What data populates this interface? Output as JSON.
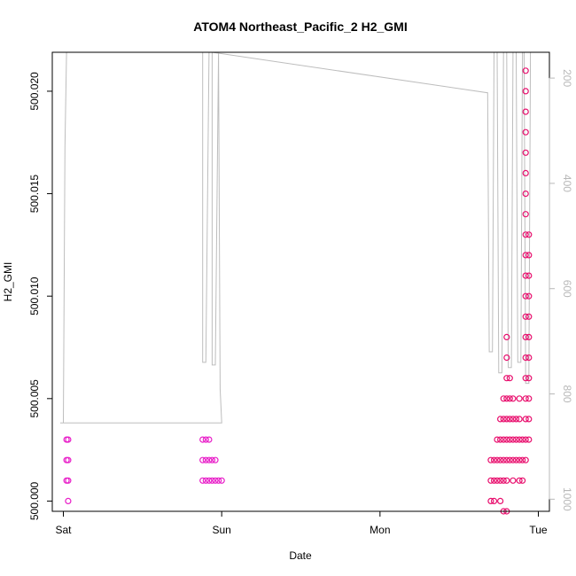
{
  "chart_data": {
    "type": "scatter",
    "title": "ATOM4 Northeast_Pacific_2 H2_GMI",
    "xlabel": "Date",
    "ylabel": "H2_GMI",
    "x_ticks": [
      "Sat",
      "Sun",
      "Mon",
      "Tue"
    ],
    "x_tick_values": [
      0,
      1,
      2,
      3
    ],
    "xlim": [
      -0.07,
      3.07
    ],
    "ylim": [
      499.9995,
      500.0219
    ],
    "y_ticks": [
      500.0,
      500.005,
      500.01,
      500.015,
      500.02
    ],
    "y_tick_labels": [
      "500.000",
      "500.005",
      "500.010",
      "500.015",
      "500.020"
    ],
    "y2_ticks": [
      200,
      400,
      600,
      800,
      1000
    ],
    "y2_tick_labels": [
      "200",
      "400",
      "600",
      "800",
      "1000"
    ],
    "y2lim": [
      1023,
      151
    ],
    "colors": {
      "early_points": "#e81ec8",
      "late_points": "#e8106e",
      "pressure_line": "#bdbdbd",
      "right_axis": "#b8b8b8"
    },
    "series": [
      {
        "role": "points",
        "color": "#e81ec8",
        "points": [
          [
            0.02,
            500.003
          ],
          [
            0.02,
            500.002
          ],
          [
            0.02,
            500.001
          ],
          [
            0.03,
            500.003
          ],
          [
            0.03,
            500.002
          ],
          [
            0.03,
            500.001
          ],
          [
            0.03,
            500.0
          ],
          [
            0.88,
            500.003
          ],
          [
            0.88,
            500.002
          ],
          [
            0.88,
            500.001
          ],
          [
            0.9,
            500.003
          ],
          [
            0.9,
            500.002
          ],
          [
            0.9,
            500.001
          ],
          [
            0.92,
            500.003
          ],
          [
            0.92,
            500.002
          ],
          [
            0.92,
            500.001
          ],
          [
            0.94,
            500.002
          ],
          [
            0.94,
            500.001
          ],
          [
            0.96,
            500.002
          ],
          [
            0.96,
            500.001
          ],
          [
            0.98,
            500.001
          ],
          [
            1.0,
            500.001
          ]
        ]
      },
      {
        "role": "points",
        "color": "#e8106e",
        "points": [
          [
            2.7,
            500.002
          ],
          [
            2.7,
            500.001
          ],
          [
            2.7,
            500.0
          ],
          [
            2.72,
            500.002
          ],
          [
            2.72,
            500.001
          ],
          [
            2.72,
            500.0
          ],
          [
            2.74,
            500.003
          ],
          [
            2.74,
            500.002
          ],
          [
            2.74,
            500.001
          ],
          [
            2.76,
            500.004
          ],
          [
            2.76,
            500.003
          ],
          [
            2.76,
            500.002
          ],
          [
            2.76,
            500.001
          ],
          [
            2.76,
            500.0
          ],
          [
            2.78,
            500.005
          ],
          [
            2.78,
            500.004
          ],
          [
            2.78,
            500.003
          ],
          [
            2.78,
            500.002
          ],
          [
            2.78,
            500.001
          ],
          [
            2.78,
            499.9995
          ],
          [
            2.8,
            500.008
          ],
          [
            2.8,
            500.007
          ],
          [
            2.8,
            500.006
          ],
          [
            2.8,
            500.005
          ],
          [
            2.8,
            500.004
          ],
          [
            2.8,
            500.003
          ],
          [
            2.8,
            500.002
          ],
          [
            2.8,
            500.001
          ],
          [
            2.8,
            499.9995
          ],
          [
            2.82,
            500.006
          ],
          [
            2.82,
            500.005
          ],
          [
            2.82,
            500.004
          ],
          [
            2.82,
            500.003
          ],
          [
            2.82,
            500.002
          ],
          [
            2.84,
            500.005
          ],
          [
            2.84,
            500.004
          ],
          [
            2.84,
            500.003
          ],
          [
            2.84,
            500.002
          ],
          [
            2.84,
            500.001
          ],
          [
            2.86,
            500.004
          ],
          [
            2.86,
            500.003
          ],
          [
            2.86,
            500.002
          ],
          [
            2.88,
            500.005
          ],
          [
            2.88,
            500.004
          ],
          [
            2.88,
            500.003
          ],
          [
            2.88,
            500.002
          ],
          [
            2.88,
            500.001
          ],
          [
            2.9,
            500.003
          ],
          [
            2.9,
            500.002
          ],
          [
            2.9,
            500.001
          ],
          [
            2.92,
            500.021
          ],
          [
            2.92,
            500.02
          ],
          [
            2.92,
            500.019
          ],
          [
            2.92,
            500.018
          ],
          [
            2.92,
            500.017
          ],
          [
            2.92,
            500.016
          ],
          [
            2.92,
            500.015
          ],
          [
            2.92,
            500.014
          ],
          [
            2.92,
            500.013
          ],
          [
            2.92,
            500.012
          ],
          [
            2.92,
            500.011
          ],
          [
            2.92,
            500.01
          ],
          [
            2.92,
            500.009
          ],
          [
            2.92,
            500.008
          ],
          [
            2.92,
            500.007
          ],
          [
            2.92,
            500.006
          ],
          [
            2.92,
            500.005
          ],
          [
            2.92,
            500.004
          ],
          [
            2.92,
            500.003
          ],
          [
            2.92,
            500.002
          ],
          [
            2.94,
            500.013
          ],
          [
            2.94,
            500.012
          ],
          [
            2.94,
            500.011
          ],
          [
            2.94,
            500.01
          ],
          [
            2.94,
            500.009
          ],
          [
            2.94,
            500.008
          ],
          [
            2.94,
            500.007
          ],
          [
            2.94,
            500.006
          ],
          [
            2.94,
            500.005
          ],
          [
            2.94,
            500.004
          ],
          [
            2.94,
            500.003
          ]
        ]
      },
      {
        "role": "line",
        "axis": "right",
        "color": "#bdbdbd",
        "points": [
          [
            -0.02,
            855
          ],
          [
            0.0,
            855
          ],
          [
            0.01,
            330
          ],
          [
            0.02,
            151
          ],
          [
            0.88,
            151
          ],
          [
            0.88,
            740
          ],
          [
            0.9,
            740
          ],
          [
            0.92,
            151
          ],
          [
            0.94,
            151
          ],
          [
            0.94,
            745
          ],
          [
            0.96,
            745
          ],
          [
            0.98,
            151
          ],
          [
            0.99,
            790
          ],
          [
            1.0,
            855
          ],
          [
            -0.02,
            855
          ]
        ]
      },
      {
        "role": "line",
        "axis": "right",
        "color": "#bdbdbd",
        "points": [
          [
            0.94,
            151
          ],
          [
            2.68,
            228
          ],
          [
            2.69,
            720
          ],
          [
            2.71,
            720
          ],
          [
            2.72,
            151
          ],
          [
            2.74,
            151
          ],
          [
            2.75,
            760
          ],
          [
            2.77,
            760
          ],
          [
            2.78,
            151
          ],
          [
            2.8,
            151
          ],
          [
            2.81,
            750
          ],
          [
            2.83,
            750
          ],
          [
            2.84,
            151
          ],
          [
            2.86,
            151
          ],
          [
            2.87,
            740
          ],
          [
            2.89,
            740
          ],
          [
            2.9,
            151
          ],
          [
            2.91,
            151
          ],
          [
            2.92,
            780
          ],
          [
            2.94,
            780
          ],
          [
            2.95,
            151
          ]
        ]
      }
    ]
  }
}
